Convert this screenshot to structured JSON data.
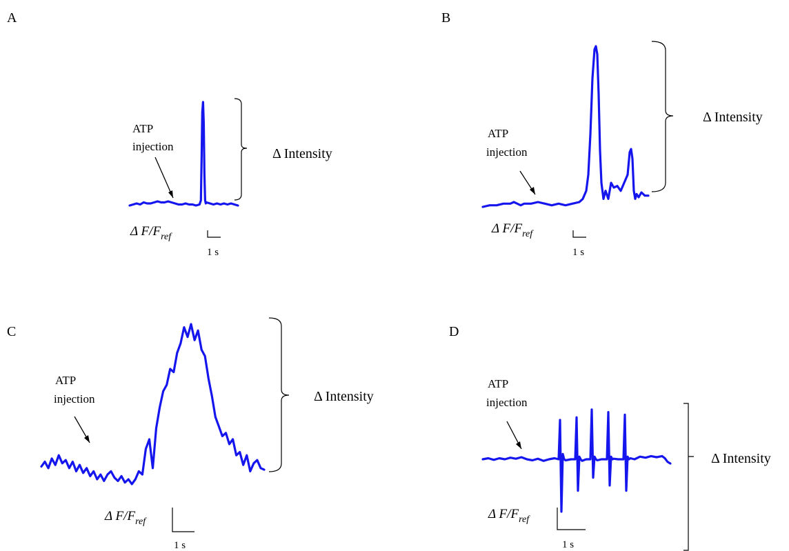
{
  "colors": {
    "trace": "#1515ee",
    "ink": "#000000"
  },
  "chart_data": [
    {
      "type": "line",
      "panel": "A",
      "annotation": [
        "ATP",
        "injection"
      ],
      "bracket_label": "Δ Intensity",
      "ylabel": "Δ F/F",
      "ylabel_sub": "ref",
      "scale_label": "1 s",
      "x": [
        0,
        5,
        10,
        15,
        20,
        25,
        30,
        35,
        40,
        45,
        50,
        55,
        60,
        65,
        70,
        75,
        80,
        85,
        90,
        95,
        100,
        102,
        103,
        104,
        105,
        106,
        107,
        108,
        109,
        110,
        115,
        120,
        125,
        130,
        135,
        140,
        145,
        150,
        155
      ],
      "y": [
        0.0,
        0.01,
        0.02,
        0.01,
        0.03,
        0.02,
        0.02,
        0.03,
        0.04,
        0.03,
        0.03,
        0.04,
        0.03,
        0.02,
        0.01,
        0.01,
        0.02,
        0.01,
        0.01,
        0.0,
        0.01,
        0.05,
        0.45,
        0.9,
        1.0,
        0.8,
        0.3,
        0.05,
        0.02,
        0.03,
        0.02,
        0.01,
        0.02,
        0.01,
        0.02,
        0.01,
        0.02,
        0.01,
        0.0
      ]
    },
    {
      "type": "line",
      "panel": "B",
      "annotation": [
        "ATP",
        "injection"
      ],
      "bracket_label": "Δ Intensity",
      "ylabel": "Δ F/F",
      "ylabel_sub": "ref",
      "scale_label": "1 s",
      "x": [
        0,
        10,
        20,
        30,
        40,
        45,
        50,
        55,
        60,
        70,
        80,
        90,
        100,
        110,
        120,
        130,
        140,
        145,
        150,
        153,
        156,
        159,
        162,
        164,
        166,
        168,
        170,
        172,
        175,
        178,
        182,
        186,
        190,
        195,
        200,
        205,
        210,
        213,
        215,
        217,
        219,
        221,
        223,
        226,
        230,
        235,
        240
      ],
      "y": [
        0.0,
        0.01,
        0.01,
        0.02,
        0.02,
        0.03,
        0.02,
        0.01,
        0.02,
        0.02,
        0.03,
        0.02,
        0.01,
        0.02,
        0.01,
        0.02,
        0.03,
        0.05,
        0.1,
        0.2,
        0.45,
        0.8,
        0.98,
        1.0,
        0.95,
        0.7,
        0.35,
        0.15,
        0.05,
        0.1,
        0.05,
        0.15,
        0.12,
        0.13,
        0.1,
        0.15,
        0.2,
        0.34,
        0.36,
        0.3,
        0.1,
        0.05,
        0.08,
        0.06,
        0.09,
        0.07,
        0.07
      ]
    },
    {
      "type": "line",
      "panel": "C",
      "annotation": [
        "ATP",
        "injection"
      ],
      "bracket_label": "Δ Intensity",
      "ylabel": "Δ F/F",
      "ylabel_sub": "ref",
      "scale_label": "1 s",
      "x": [
        0,
        5,
        10,
        15,
        20,
        25,
        30,
        35,
        40,
        45,
        50,
        55,
        60,
        65,
        70,
        75,
        80,
        85,
        90,
        95,
        100,
        105,
        110,
        115,
        120,
        125,
        130,
        135,
        140,
        145,
        150,
        155,
        160,
        165,
        170,
        175,
        180,
        185,
        190,
        195,
        200,
        205,
        210,
        215,
        220,
        225,
        230,
        235,
        240,
        245,
        250,
        255,
        260,
        265,
        270,
        275,
        280,
        285,
        290,
        295,
        300,
        305,
        310,
        315,
        320
      ],
      "y": [
        0.11,
        0.14,
        0.1,
        0.16,
        0.12,
        0.18,
        0.13,
        0.15,
        0.1,
        0.14,
        0.08,
        0.12,
        0.07,
        0.1,
        0.05,
        0.08,
        0.03,
        0.06,
        0.02,
        0.06,
        0.08,
        0.04,
        0.02,
        0.05,
        0.01,
        0.03,
        0.0,
        0.03,
        0.08,
        0.06,
        0.22,
        0.28,
        0.1,
        0.35,
        0.48,
        0.58,
        0.62,
        0.72,
        0.7,
        0.82,
        0.88,
        0.98,
        0.92,
        1.0,
        0.9,
        0.96,
        0.84,
        0.8,
        0.66,
        0.55,
        0.42,
        0.36,
        0.3,
        0.32,
        0.25,
        0.28,
        0.18,
        0.2,
        0.12,
        0.18,
        0.08,
        0.13,
        0.15,
        0.1,
        0.09
      ]
    },
    {
      "type": "line",
      "panel": "D",
      "annotation": [
        "ATP",
        "injection"
      ],
      "bracket_label": "Δ Intensity",
      "ylabel": "Δ F/F",
      "ylabel_sub": "ref",
      "scale_label": "1 s",
      "x": [
        0,
        8,
        16,
        24,
        32,
        40,
        48,
        56,
        64,
        72,
        80,
        88,
        96,
        104,
        110,
        112,
        114,
        116,
        118,
        120,
        128,
        134,
        136,
        138,
        140,
        142,
        144,
        150,
        156,
        158,
        160,
        162,
        164,
        166,
        172,
        180,
        182,
        184,
        186,
        188,
        190,
        196,
        204,
        206,
        208,
        210,
        212,
        214,
        220,
        228,
        236,
        244,
        252,
        260,
        264,
        268,
        272
      ],
      "y": [
        0.0,
        0.02,
        -0.01,
        0.02,
        0.0,
        0.03,
        0.01,
        0.04,
        0.0,
        -0.02,
        0.01,
        -0.03,
        0.0,
        0.02,
        0.0,
        0.75,
        -1.0,
        0.1,
        0.0,
        -0.02,
        0.0,
        0.0,
        0.8,
        -0.6,
        0.05,
        0.0,
        -0.03,
        0.0,
        0.0,
        0.95,
        -0.35,
        0.05,
        0.0,
        -0.02,
        0.0,
        0.0,
        0.9,
        -0.5,
        0.05,
        0.0,
        0.01,
        0.0,
        0.0,
        0.85,
        -0.6,
        0.05,
        0.0,
        0.02,
        0.0,
        0.05,
        0.03,
        0.06,
        0.04,
        0.06,
        0.02,
        -0.05,
        -0.08
      ]
    }
  ]
}
